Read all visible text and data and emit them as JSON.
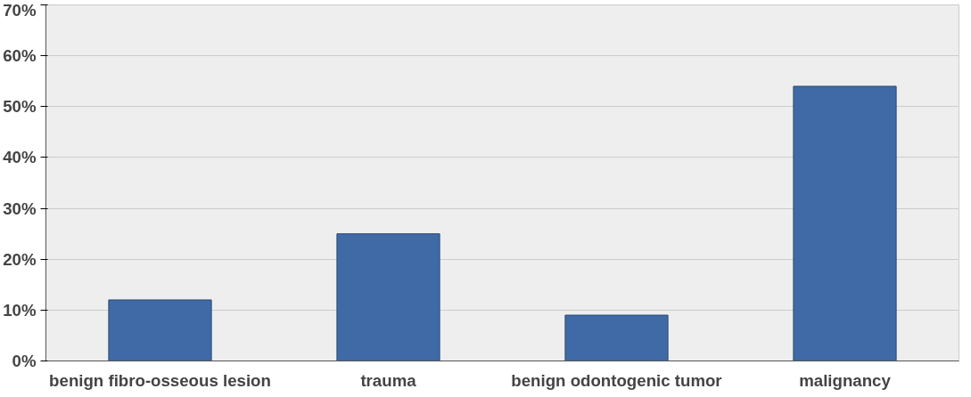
{
  "chart_data": {
    "type": "bar",
    "categories": [
      "benign fibro-osseous lesion",
      "trauma",
      "benign odontogenic tumor",
      "malignancy"
    ],
    "values": [
      12,
      25,
      9,
      54
    ],
    "color": "#3f6aa5",
    "ylim": [
      0,
      70
    ],
    "yticks": [
      {
        "value": 0,
        "label": "0%"
      },
      {
        "value": 10,
        "label": "10%"
      },
      {
        "value": 20,
        "label": "20%"
      },
      {
        "value": 30,
        "label": "30%"
      },
      {
        "value": 40,
        "label": "40%"
      },
      {
        "value": 50,
        "label": "50%"
      },
      {
        "value": 60,
        "label": "60%"
      },
      {
        "value": 70,
        "label": "70%"
      }
    ],
    "grid": "y"
  }
}
